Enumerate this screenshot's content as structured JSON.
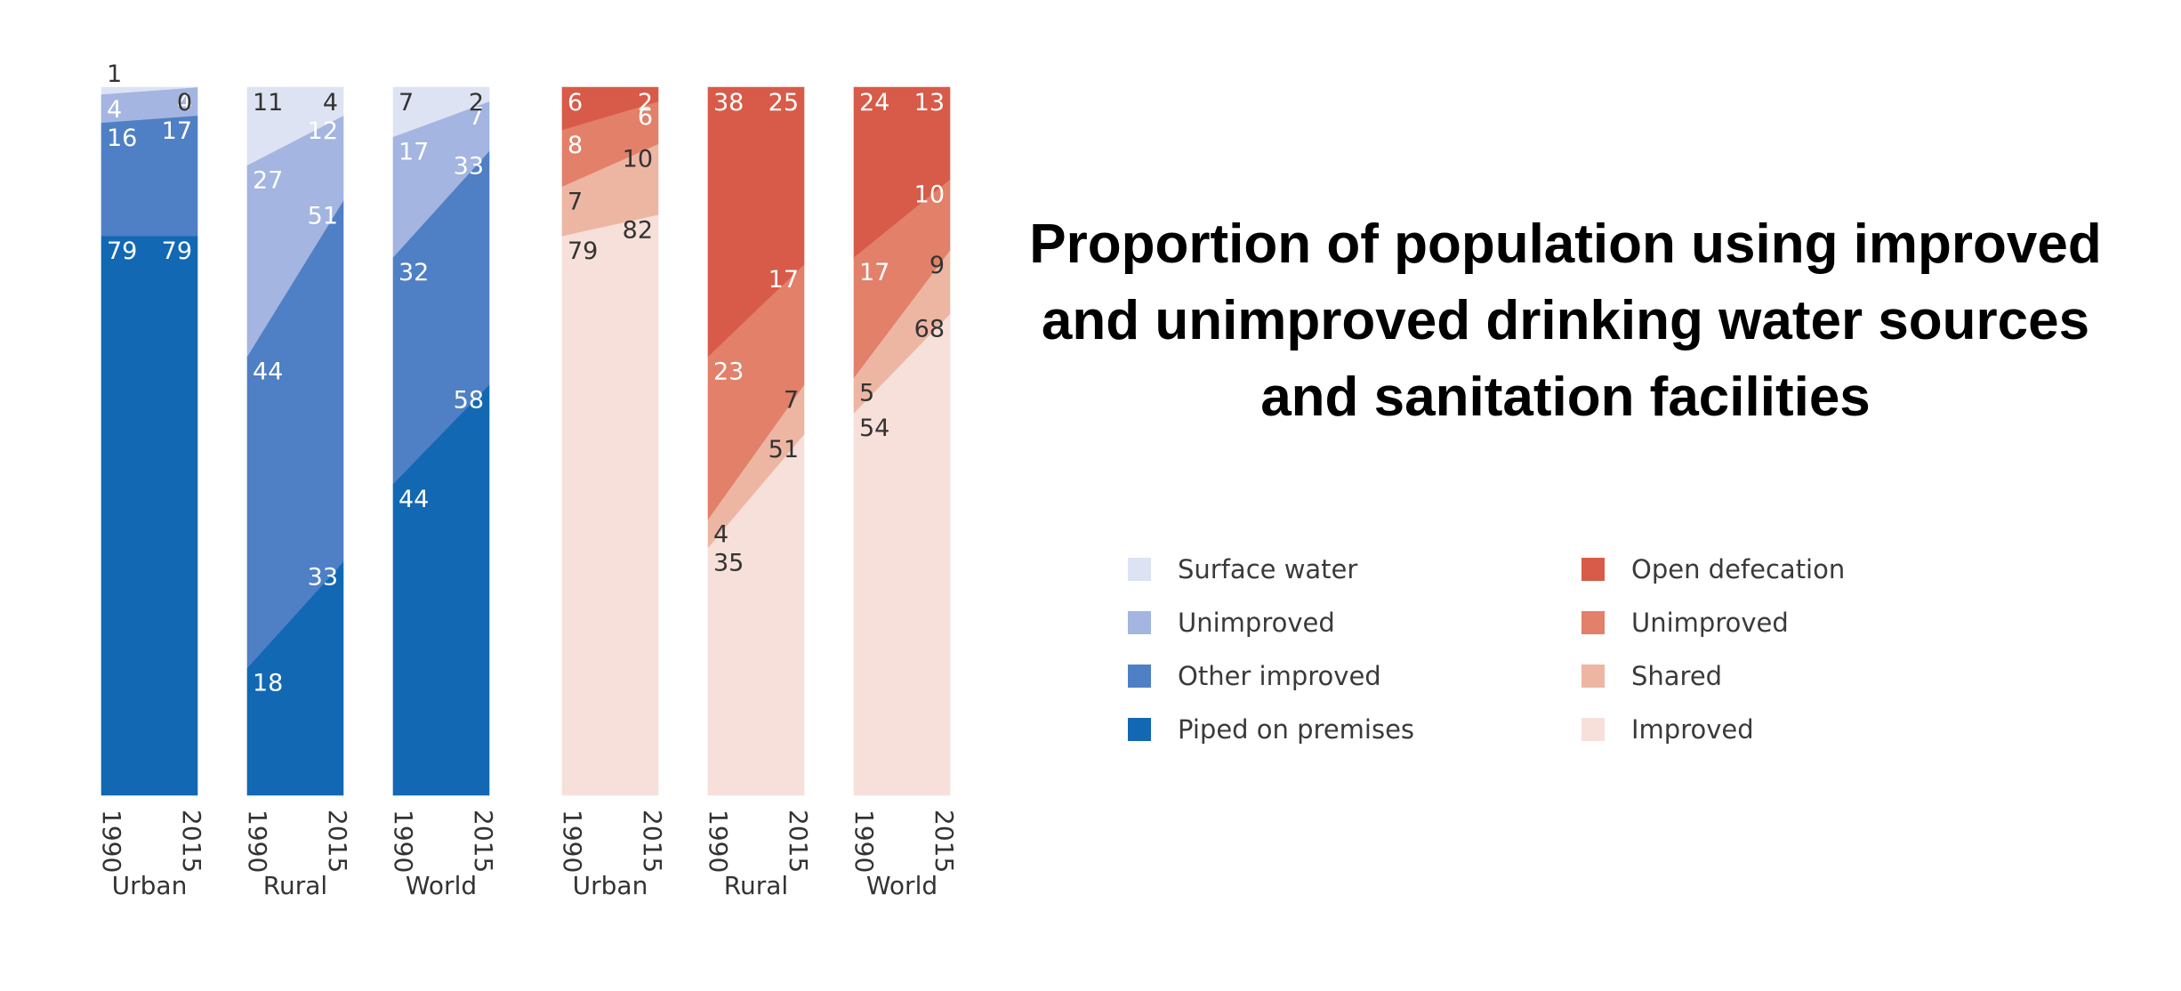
{
  "chart_data": {
    "type": "area",
    "title": "Proportion of population using improved and unimproved drinking water sources and sanitation facilities",
    "title_lines": [
      "Proportion of population using improved",
      "and unimproved drinking water sources",
      "and sanitation facilities"
    ],
    "x": [
      "1990",
      "2015"
    ],
    "ylim": [
      0,
      100
    ],
    "unit": "%",
    "legend_position": "right",
    "groups": [
      {
        "name": "Drinking water",
        "legend": [
          {
            "name": "Surface water",
            "color": "#dde3f2"
          },
          {
            "name": "Unimproved",
            "color": "#a3b5e0"
          },
          {
            "name": "Other improved",
            "color": "#4f7fc4"
          },
          {
            "name": "Piped on premises",
            "color": "#1268b3"
          }
        ],
        "panels": [
          {
            "label": "Urban",
            "series": [
              {
                "name": "Piped on premises",
                "values": [
                  79,
                  79
                ]
              },
              {
                "name": "Other improved",
                "values": [
                  16,
                  17
                ]
              },
              {
                "name": "Unimproved",
                "values": [
                  4,
                  4
                ]
              },
              {
                "name": "Surface water",
                "values": [
                  1,
                  0
                ]
              }
            ]
          },
          {
            "label": "Rural",
            "series": [
              {
                "name": "Piped on premises",
                "values": [
                  18,
                  33
                ]
              },
              {
                "name": "Other improved",
                "values": [
                  44,
                  51
                ]
              },
              {
                "name": "Unimproved",
                "values": [
                  27,
                  12
                ]
              },
              {
                "name": "Surface water",
                "values": [
                  11,
                  4
                ]
              }
            ]
          },
          {
            "label": "World",
            "series": [
              {
                "name": "Piped on premises",
                "values": [
                  44,
                  58
                ]
              },
              {
                "name": "Other improved",
                "values": [
                  32,
                  33
                ]
              },
              {
                "name": "Unimproved",
                "values": [
                  17,
                  7
                ]
              },
              {
                "name": "Surface water",
                "values": [
                  7,
                  2
                ]
              }
            ]
          }
        ]
      },
      {
        "name": "Sanitation",
        "legend": [
          {
            "name": "Open defecation",
            "color": "#d85a48"
          },
          {
            "name": "Unimproved",
            "color": "#e2806a"
          },
          {
            "name": "Shared",
            "color": "#edb6a3"
          },
          {
            "name": "Improved",
            "color": "#f6e0d9"
          }
        ],
        "panels": [
          {
            "label": "Urban",
            "series": [
              {
                "name": "Improved",
                "values": [
                  79,
                  82
                ]
              },
              {
                "name": "Shared",
                "values": [
                  7,
                  10
                ]
              },
              {
                "name": "Unimproved",
                "values": [
                  8,
                  6
                ]
              },
              {
                "name": "Open defecation",
                "values": [
                  6,
                  2
                ]
              }
            ]
          },
          {
            "label": "Rural",
            "series": [
              {
                "name": "Improved",
                "values": [
                  35,
                  51
                ]
              },
              {
                "name": "Shared",
                "values": [
                  4,
                  7
                ]
              },
              {
                "name": "Unimproved",
                "values": [
                  23,
                  17
                ]
              },
              {
                "name": "Open defecation",
                "values": [
                  38,
                  25
                ]
              }
            ]
          },
          {
            "label": "World",
            "series": [
              {
                "name": "Improved",
                "values": [
                  54,
                  68
                ]
              },
              {
                "name": "Shared",
                "values": [
                  5,
                  9
                ]
              },
              {
                "name": "Unimproved",
                "values": [
                  17,
                  10
                ]
              },
              {
                "name": "Open defecation",
                "values": [
                  24,
                  13
                ]
              }
            ]
          }
        ]
      }
    ]
  }
}
